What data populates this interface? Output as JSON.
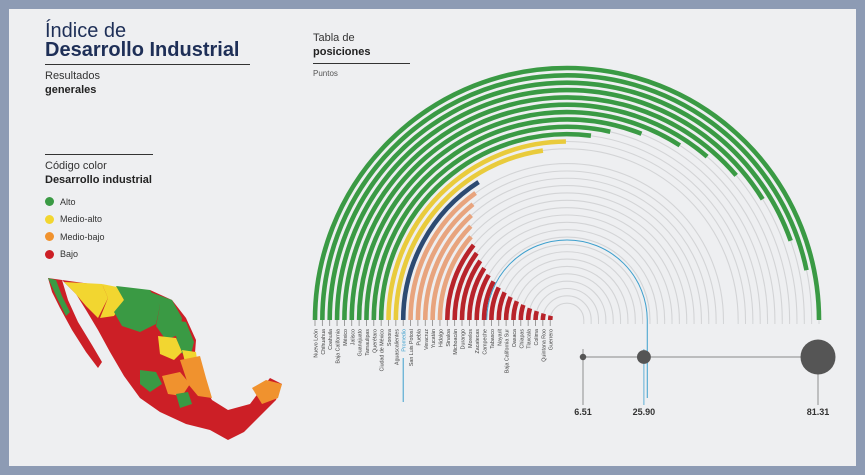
{
  "header": {
    "title_line1": "Índice de",
    "title_line2": "Desarrollo Industrial",
    "subtitle_line1": "Resultados",
    "subtitle_line2": "generales"
  },
  "legend": {
    "title_line1": "Código color",
    "title_line2": "Desarrollo industrial",
    "items": [
      {
        "label": "Alto",
        "color": "#3a9a44"
      },
      {
        "label": "Medio-alto",
        "color": "#f2d630"
      },
      {
        "label": "Medio-bajo",
        "color": "#f0922e"
      },
      {
        "label": "Bajo",
        "color": "#cc1f26"
      }
    ]
  },
  "table": {
    "title_line1": "Tabla de",
    "title_line2": "posiciones",
    "unit": "Puntos"
  },
  "colors": {
    "alto": "#3a9a44",
    "medio_alto": "#e9cb3c",
    "medio_bajo": "#e8a47e",
    "bajo": "#b8232a",
    "promedio": "#2c4a72",
    "promedio_line": "#3c9fcd",
    "track": "#d3d4d6"
  },
  "chart_data": {
    "type": "radial-bar",
    "max": 81.31,
    "scale_labels": [
      "6.51",
      "25.90",
      "81.31"
    ],
    "scale_values": [
      6.51,
      25.9,
      81.31
    ],
    "promedio_label": "Promedio",
    "promedio_value": 25.9,
    "states": [
      {
        "name": "Nuevo León",
        "value": 81.31,
        "class": "alto"
      },
      {
        "name": "Chihuahua",
        "value": 76.0,
        "class": "alto"
      },
      {
        "name": "Coahuila",
        "value": 72.5,
        "class": "alto"
      },
      {
        "name": "Baja California",
        "value": 67.0,
        "class": "alto"
      },
      {
        "name": "México",
        "value": 63.0,
        "class": "alto"
      },
      {
        "name": "Jalisco",
        "value": 59.0,
        "class": "alto"
      },
      {
        "name": "Guanajuato",
        "value": 55.5,
        "class": "alto"
      },
      {
        "name": "Tamaulipas",
        "value": 50.5,
        "class": "alto"
      },
      {
        "name": "Querétaro",
        "value": 46.5,
        "class": "alto"
      },
      {
        "name": "Ciudad de México",
        "value": 44.0,
        "class": "alto"
      },
      {
        "name": "Sonora",
        "value": 40.5,
        "class": "medio_alto"
      },
      {
        "name": "Aguascalientes",
        "value": 37.0,
        "class": "medio_alto"
      },
      {
        "name": "Promedio",
        "value": 25.9,
        "class": "promedio"
      },
      {
        "name": "San Luis Potosí",
        "value": 24.5,
        "class": "medio_bajo"
      },
      {
        "name": "Puebla",
        "value": 23.0,
        "class": "medio_bajo"
      },
      {
        "name": "Veracruz",
        "value": 21.5,
        "class": "medio_bajo"
      },
      {
        "name": "Yucatán",
        "value": 20.0,
        "class": "medio_bajo"
      },
      {
        "name": "Hidalgo",
        "value": 18.5,
        "class": "medio_bajo"
      },
      {
        "name": "Sinaloa",
        "value": 17.5,
        "class": "bajo"
      },
      {
        "name": "Michoacán",
        "value": 16.5,
        "class": "bajo"
      },
      {
        "name": "Durango",
        "value": 15.5,
        "class": "bajo"
      },
      {
        "name": "Morelos",
        "value": 14.5,
        "class": "bajo"
      },
      {
        "name": "Zacatecas",
        "value": 13.5,
        "class": "bajo"
      },
      {
        "name": "Campeche",
        "value": 12.5,
        "class": "bajo"
      },
      {
        "name": "Tabasco",
        "value": 11.5,
        "class": "bajo"
      },
      {
        "name": "Nayarit",
        "value": 10.8,
        "class": "bajo"
      },
      {
        "name": "Baja California Sur",
        "value": 10.0,
        "class": "bajo"
      },
      {
        "name": "Oaxaca",
        "value": 9.3,
        "class": "bajo"
      },
      {
        "name": "Chiapas",
        "value": 8.6,
        "class": "bajo"
      },
      {
        "name": "Tlaxcala",
        "value": 7.9,
        "class": "bajo"
      },
      {
        "name": "Colima",
        "value": 7.4,
        "class": "bajo"
      },
      {
        "name": "Quintana Roo",
        "value": 6.9,
        "class": "bajo"
      },
      {
        "name": "Guerrero",
        "value": 6.51,
        "class": "bajo"
      }
    ]
  }
}
